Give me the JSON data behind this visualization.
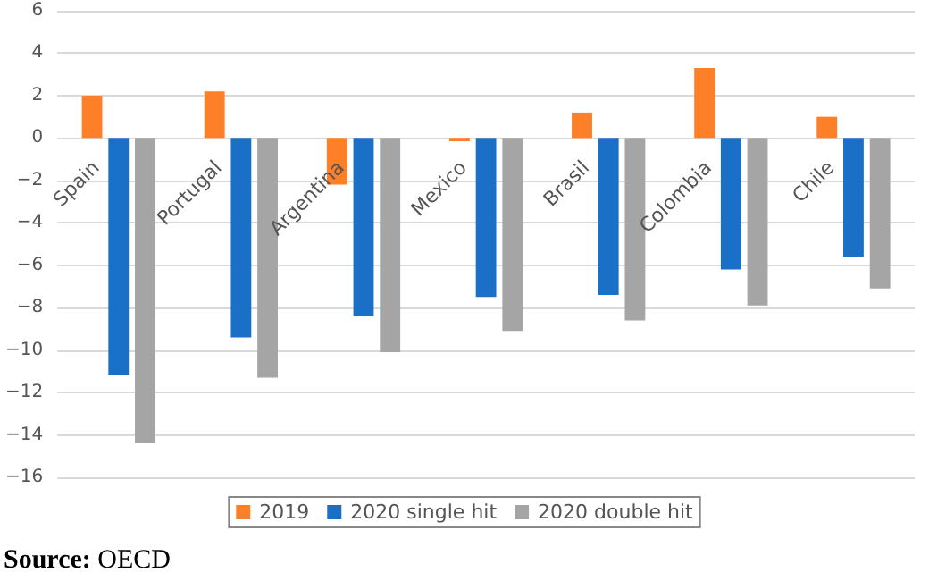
{
  "chart_data": {
    "type": "bar",
    "categories": [
      "Spain",
      "Portugal",
      "Argentina",
      "Mexico",
      "Brasil",
      "Colombia",
      "Chile"
    ],
    "series": [
      {
        "name": "2019",
        "color": "#fd7f28",
        "values": [
          2.0,
          2.2,
          -2.2,
          -0.15,
          1.2,
          3.3,
          1.0
        ]
      },
      {
        "name": "2020 single hit",
        "color": "#1a6fc6",
        "values": [
          -11.2,
          -9.4,
          -8.4,
          -7.5,
          -7.4,
          -6.2,
          -5.6
        ]
      },
      {
        "name": "2020 double hit",
        "color": "#a5a5a5",
        "values": [
          -14.4,
          -11.3,
          -10.1,
          -9.1,
          -8.6,
          -7.9,
          -7.1
        ]
      }
    ],
    "ylim": [
      -16,
      6
    ],
    "yticks": [
      -16,
      -14,
      -12,
      -10,
      -8,
      -6,
      -4,
      -2,
      0,
      2,
      4,
      6
    ],
    "grid": "y",
    "legend": "bottom",
    "annotations": [
      "Source: OECD"
    ]
  }
}
